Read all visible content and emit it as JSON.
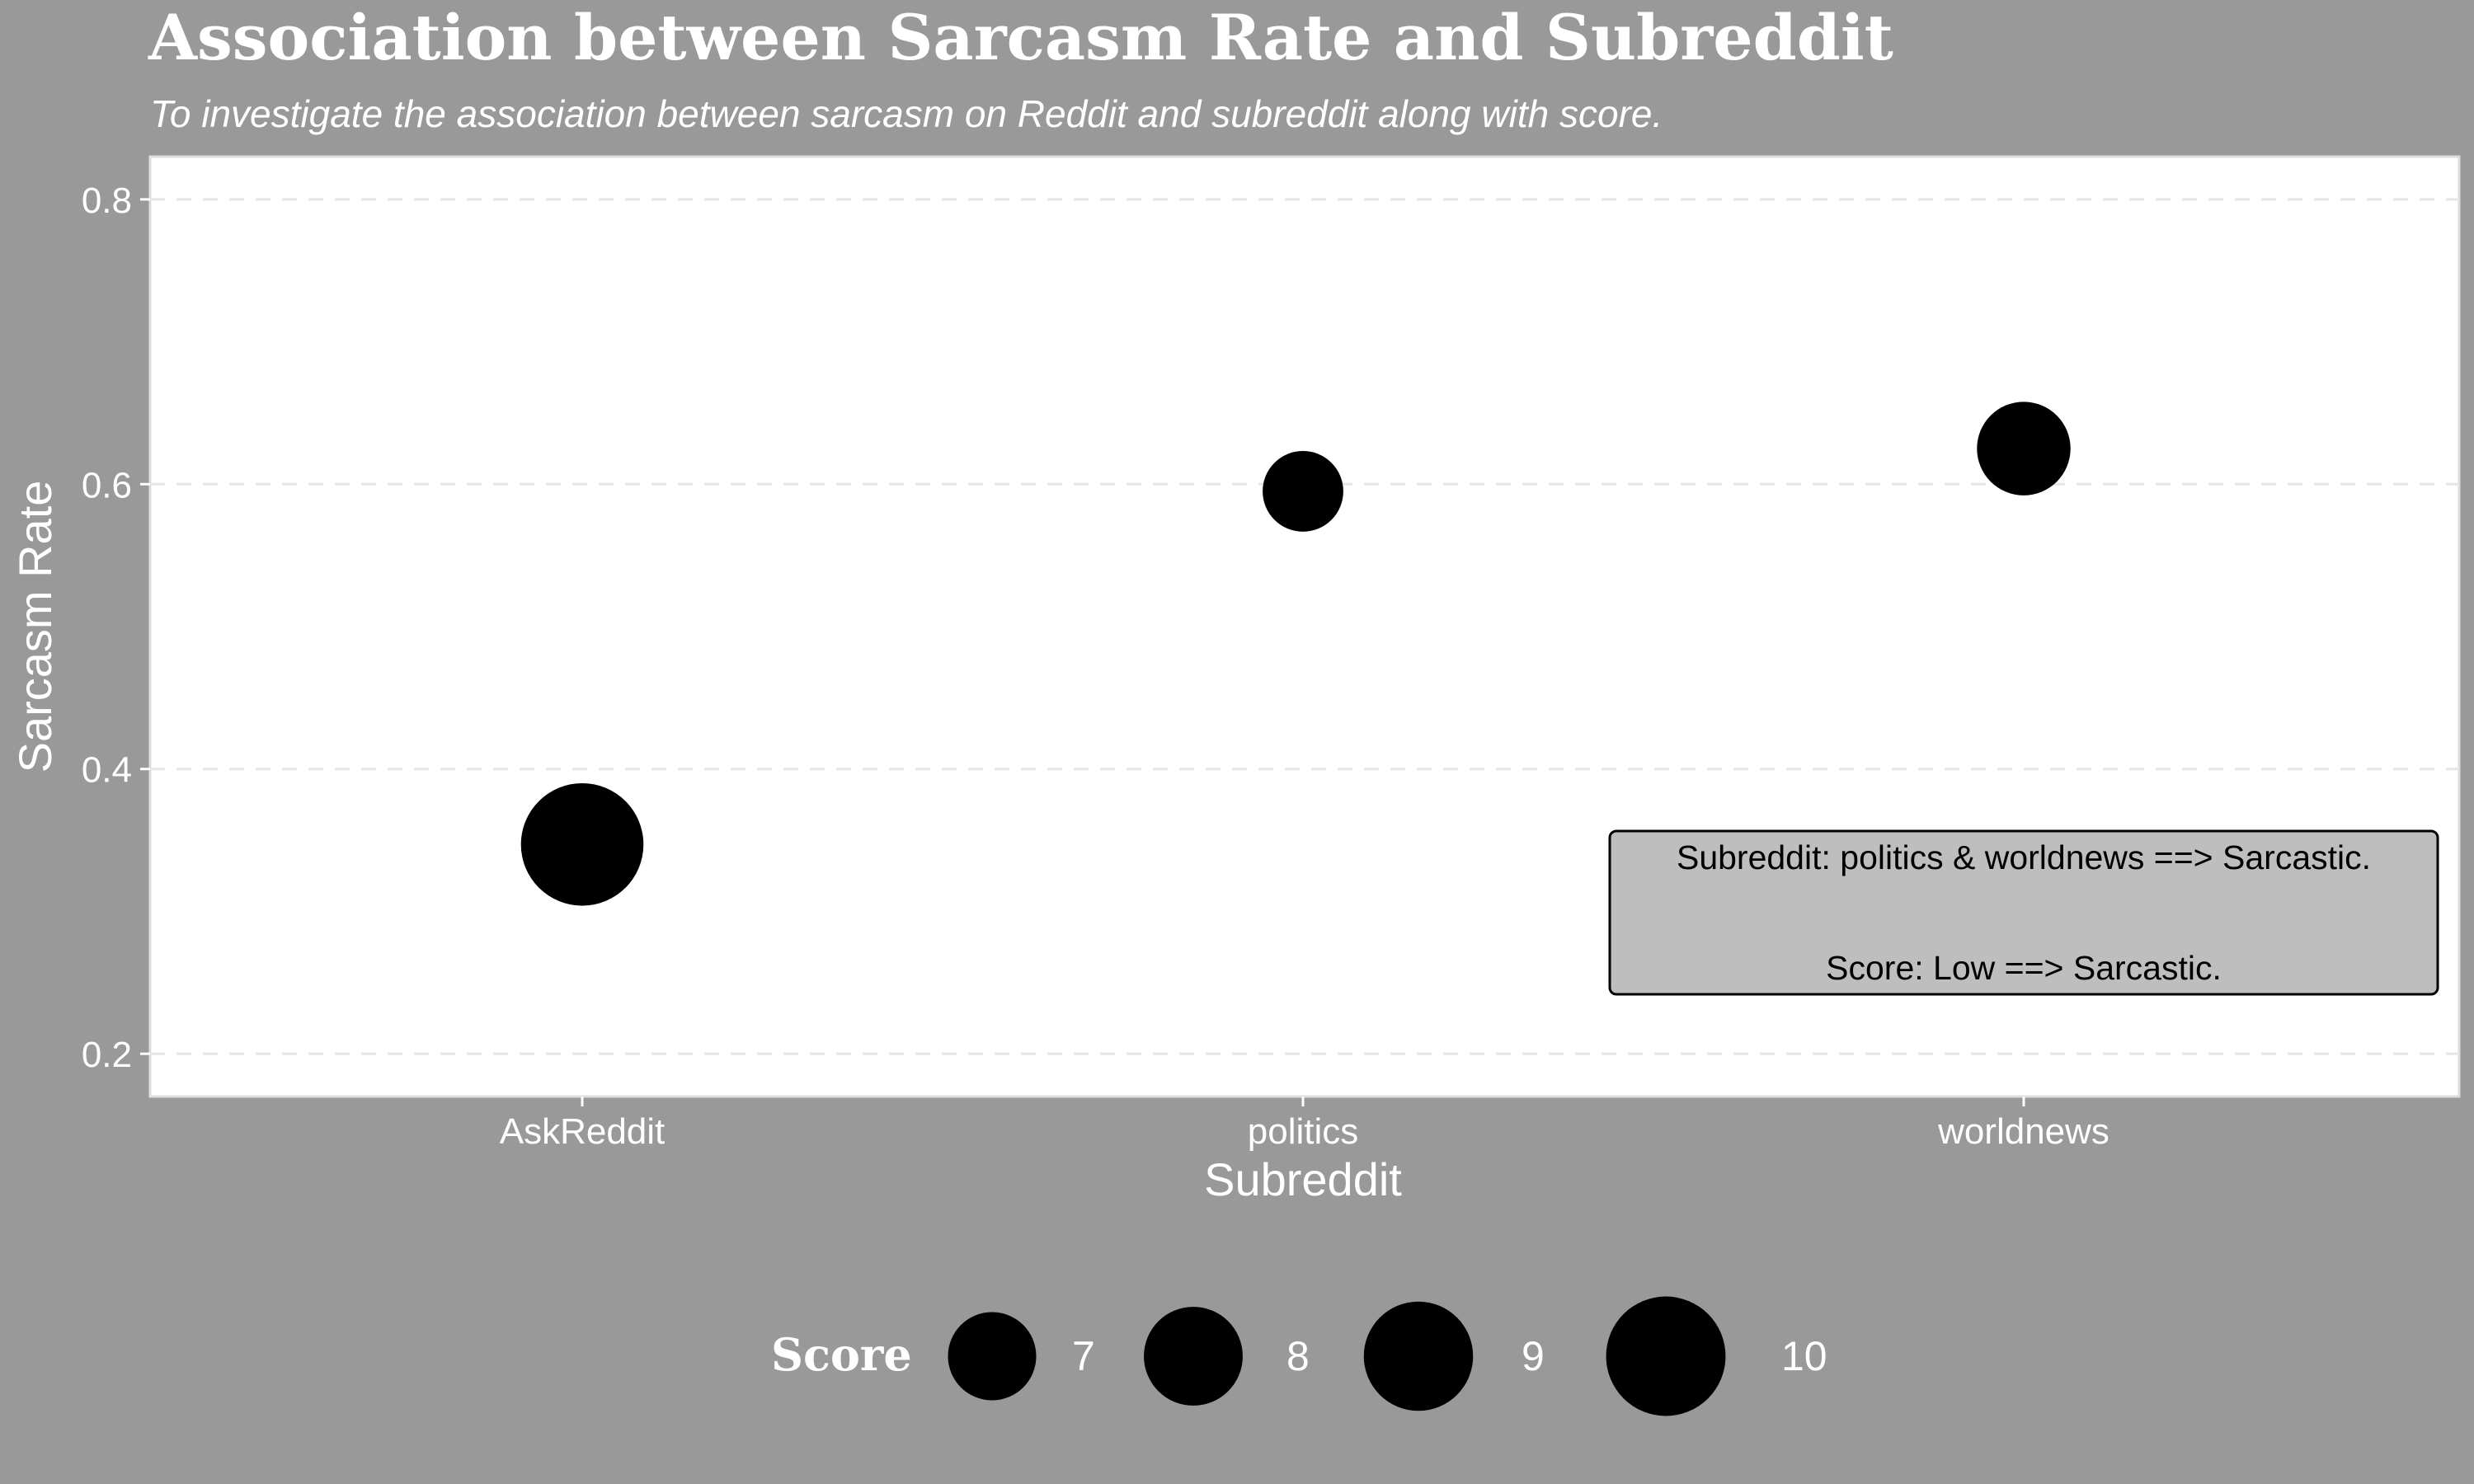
{
  "chart_data": {
    "type": "scatter",
    "title": "Association between Sarcasm Rate and Subreddit",
    "subtitle": "To investigate the association between sarcasm on Reddit and subreddit along with score.",
    "xlabel": "Subreddit",
    "ylabel": "Sarcasm Rate",
    "categories": [
      "AskReddit",
      "politics",
      "worldnews"
    ],
    "y_ticks": [
      0.2,
      0.4,
      0.6,
      0.8
    ],
    "y_tick_labels": [
      "0.2",
      "0.4",
      "0.6",
      "0.8"
    ],
    "ylim": [
      0.17,
      0.83
    ],
    "grid": "horizontal-dashed",
    "points": [
      {
        "x": "AskReddit",
        "y": 0.347,
        "score": 10.3
      },
      {
        "x": "politics",
        "y": 0.595,
        "score": 6.3
      },
      {
        "x": "worldnews",
        "y": 0.625,
        "score": 7.5
      }
    ],
    "legend": {
      "title": "Score",
      "placement": "bottom",
      "entries": [
        {
          "label": "7",
          "score": 7
        },
        {
          "label": "8",
          "score": 8
        },
        {
          "label": "9",
          "score": 9
        },
        {
          "label": "10",
          "score": 10
        }
      ]
    },
    "annotation": {
      "line1": "Subreddit: politics & worldnews ==> Sarcastic.",
      "line2": "Score: Low ==> Sarcastic.",
      "placement": "bottom-right"
    },
    "colors": {
      "background": "#999999",
      "panel": "#ffffff",
      "point": "#000000",
      "grid": "#e6e6e6",
      "annotation_fill": "#bebebe",
      "text": "#ffffff"
    }
  }
}
